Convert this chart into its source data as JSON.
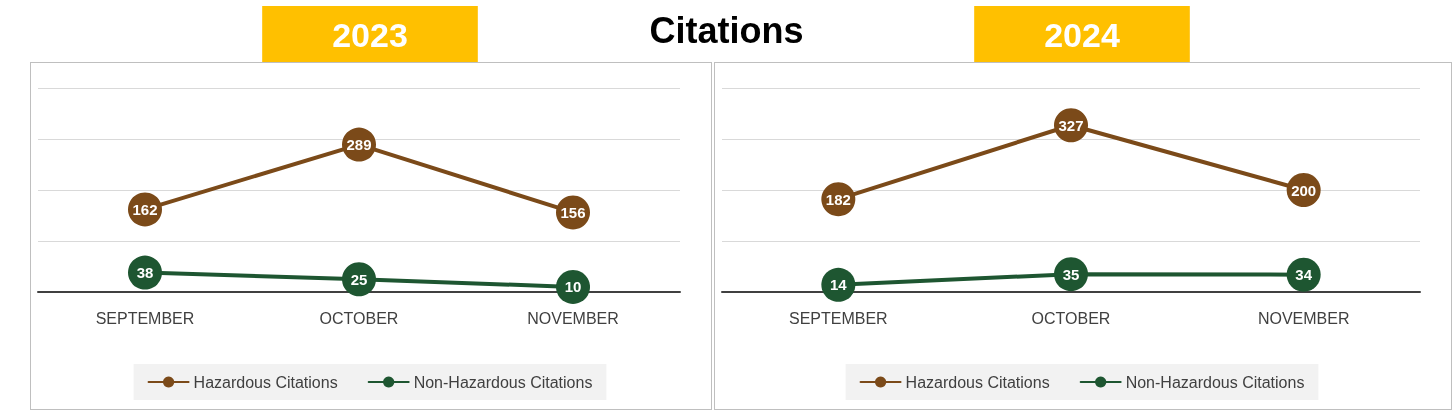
{
  "chart_data": [
    {
      "type": "line",
      "title": "2023",
      "annotations": [
        "Citations"
      ],
      "categories": [
        "SEPTEMBER",
        "OCTOBER",
        "NOVEMBER"
      ],
      "series": [
        {
          "name": "Hazardous Citations",
          "color": "#7b4a19",
          "values": [
            162,
            289,
            156
          ]
        },
        {
          "name": "Non-Hazardous Citations",
          "color": "#1e5631",
          "values": [
            38,
            25,
            10
          ]
        }
      ],
      "ylim": [
        0,
        400
      ],
      "yticks": [
        0,
        100,
        200,
        300,
        400
      ],
      "tick_labels": "x",
      "grid": "y",
      "legend": "bottom",
      "marker": "circle",
      "line_style": "solid",
      "data_labels": true
    },
    {
      "type": "line",
      "title": "2024",
      "categories": [
        "SEPTEMBER",
        "OCTOBER",
        "NOVEMBER"
      ],
      "series": [
        {
          "name": "Hazardous Citations",
          "color": "#7b4a19",
          "values": [
            182,
            327,
            200
          ]
        },
        {
          "name": "Non-Hazardous Citations",
          "color": "#1e5631",
          "values": [
            14,
            35,
            34
          ]
        }
      ],
      "ylim": [
        0,
        400
      ],
      "yticks": [
        0,
        100,
        200,
        300,
        400
      ],
      "tick_labels": "x",
      "grid": "y",
      "legend": "bottom",
      "marker": "circle",
      "line_style": "solid",
      "data_labels": true
    }
  ]
}
